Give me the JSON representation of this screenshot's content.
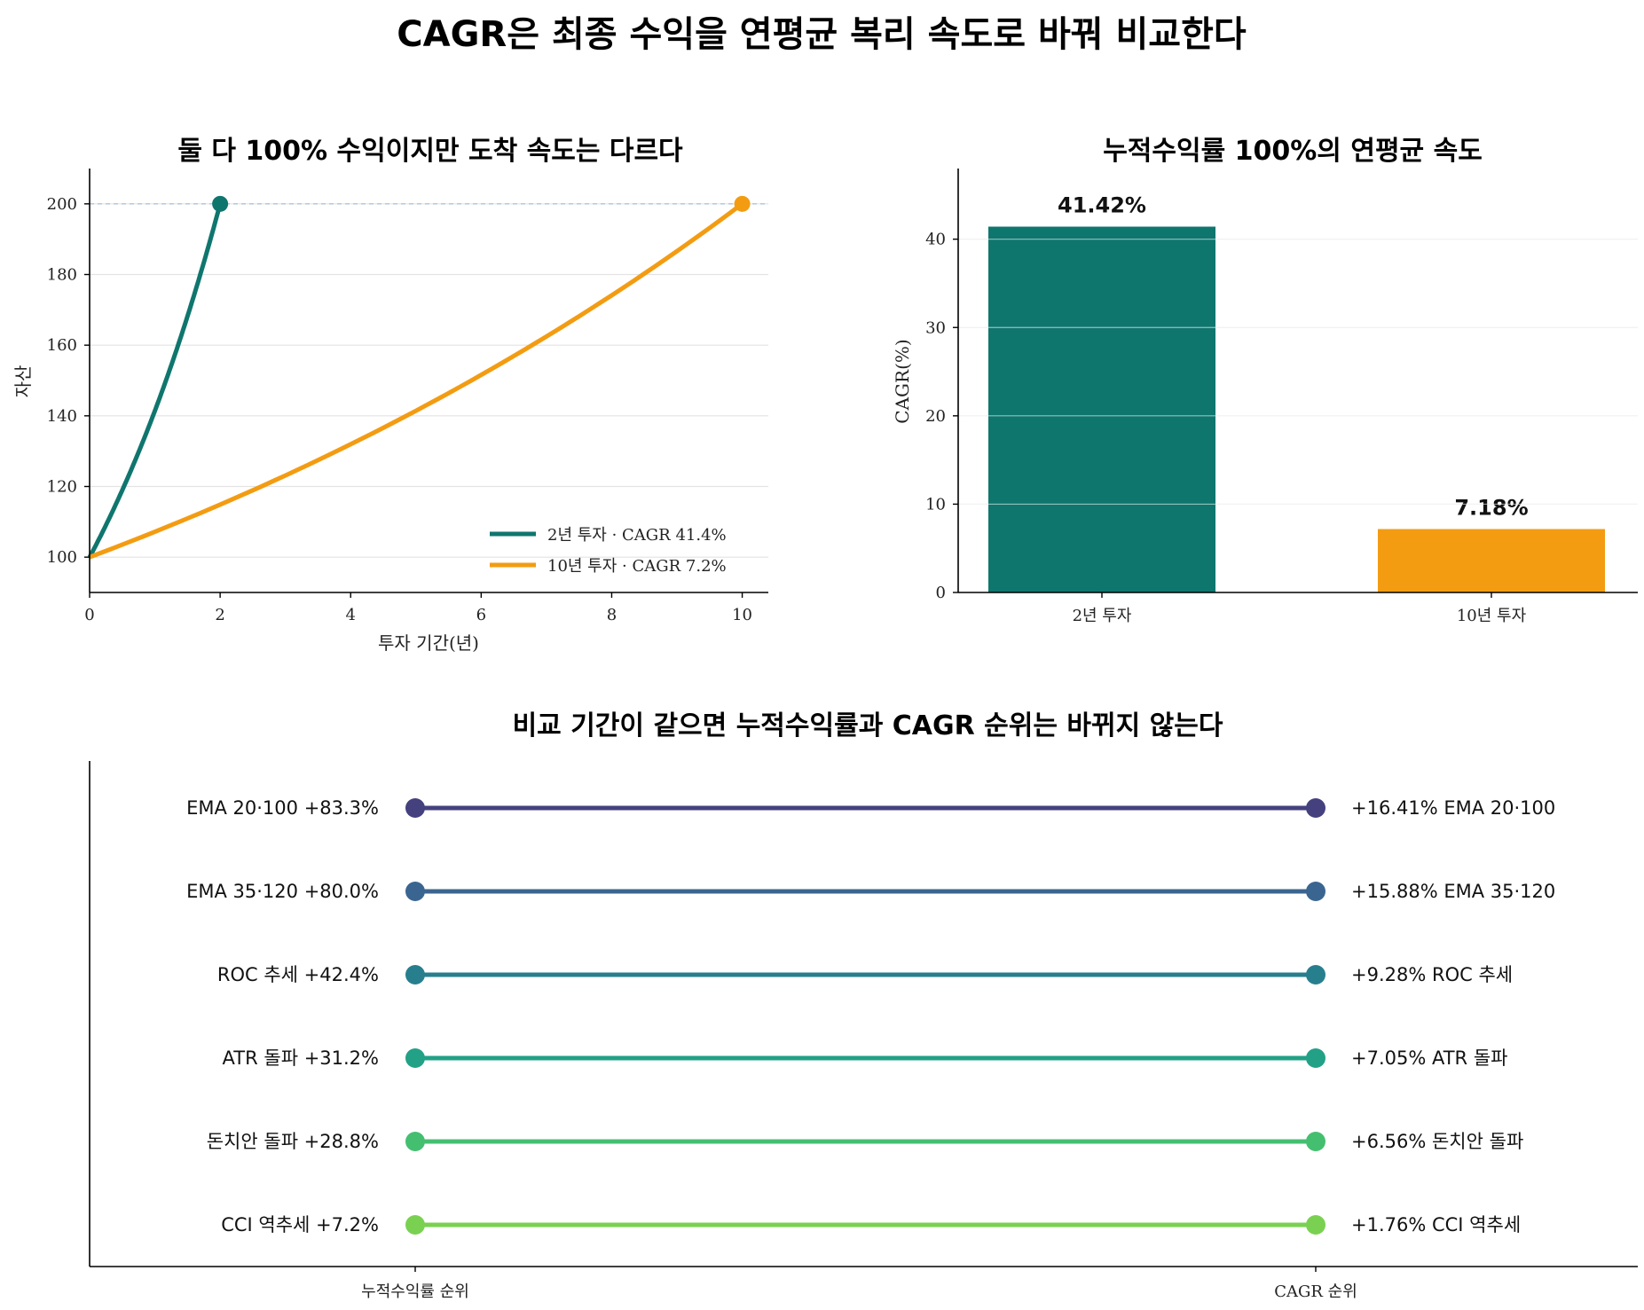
{
  "title": "CAGR은 최종 수익을 연평균 복리 속도로 바꿔 비교한다",
  "chart_data": [
    {
      "type": "line",
      "title": "둘 다 100% 수익이지만 도착 속도는 다르다",
      "xlabel": "투자 기간(년)",
      "ylabel": "자산",
      "xlim": [
        0,
        10.4
      ],
      "ylim": [
        90,
        210
      ],
      "xticks": [
        0,
        2,
        4,
        6,
        8,
        10
      ],
      "yticks": [
        100,
        120,
        140,
        160,
        180,
        200
      ],
      "reference_line": 200,
      "grid": "y",
      "legend_position": "lower-right",
      "series": [
        {
          "name": "2년 투자 · CAGR 41.4%",
          "color": "#0f766e",
          "years": 2,
          "start": 100,
          "end": 200
        },
        {
          "name": "10년 투자 · CAGR 7.2%",
          "color": "#f39c12",
          "years": 10,
          "start": 100,
          "end": 200
        }
      ]
    },
    {
      "type": "bar",
      "title": "누적수익률 100%의 연평균 속도",
      "ylabel": "CAGR(%)",
      "ylim": [
        0,
        48
      ],
      "yticks": [
        0,
        10,
        20,
        30,
        40
      ],
      "grid": "y",
      "categories": [
        "2년 투자",
        "10년 투자"
      ],
      "values": [
        41.42,
        7.18
      ],
      "labels": [
        "41.42%",
        "7.18%"
      ],
      "colors": [
        "#0f766e",
        "#f39c12"
      ]
    },
    {
      "type": "slope",
      "title": "비교 기간이 같으면 누적수익률과 CAGR 순위는 바뀌지 않는다",
      "xticks": [
        "누적수익률 순위",
        "CAGR 순위"
      ],
      "rows": [
        {
          "name": "EMA 20·100",
          "cum": "+83.3%",
          "cagr": "+16.41%",
          "color": "#45417f"
        },
        {
          "name": "EMA 35·120",
          "cum": "+80.0%",
          "cagr": "+15.88%",
          "color": "#3b6591"
        },
        {
          "name": "ROC 추세",
          "cum": "+42.4%",
          "cagr": "+9.28%",
          "color": "#277f8e"
        },
        {
          "name": "ATR 돌파",
          "cum": "+31.2%",
          "cagr": "+7.05%",
          "color": "#22a187"
        },
        {
          "name": "돈치안 돌파",
          "cum": "+28.8%",
          "cagr": "+6.56%",
          "color": "#44bf70"
        },
        {
          "name": "CCI 역추세",
          "cum": "+7.2%",
          "cagr": "+1.76%",
          "color": "#7ad151"
        }
      ]
    }
  ]
}
